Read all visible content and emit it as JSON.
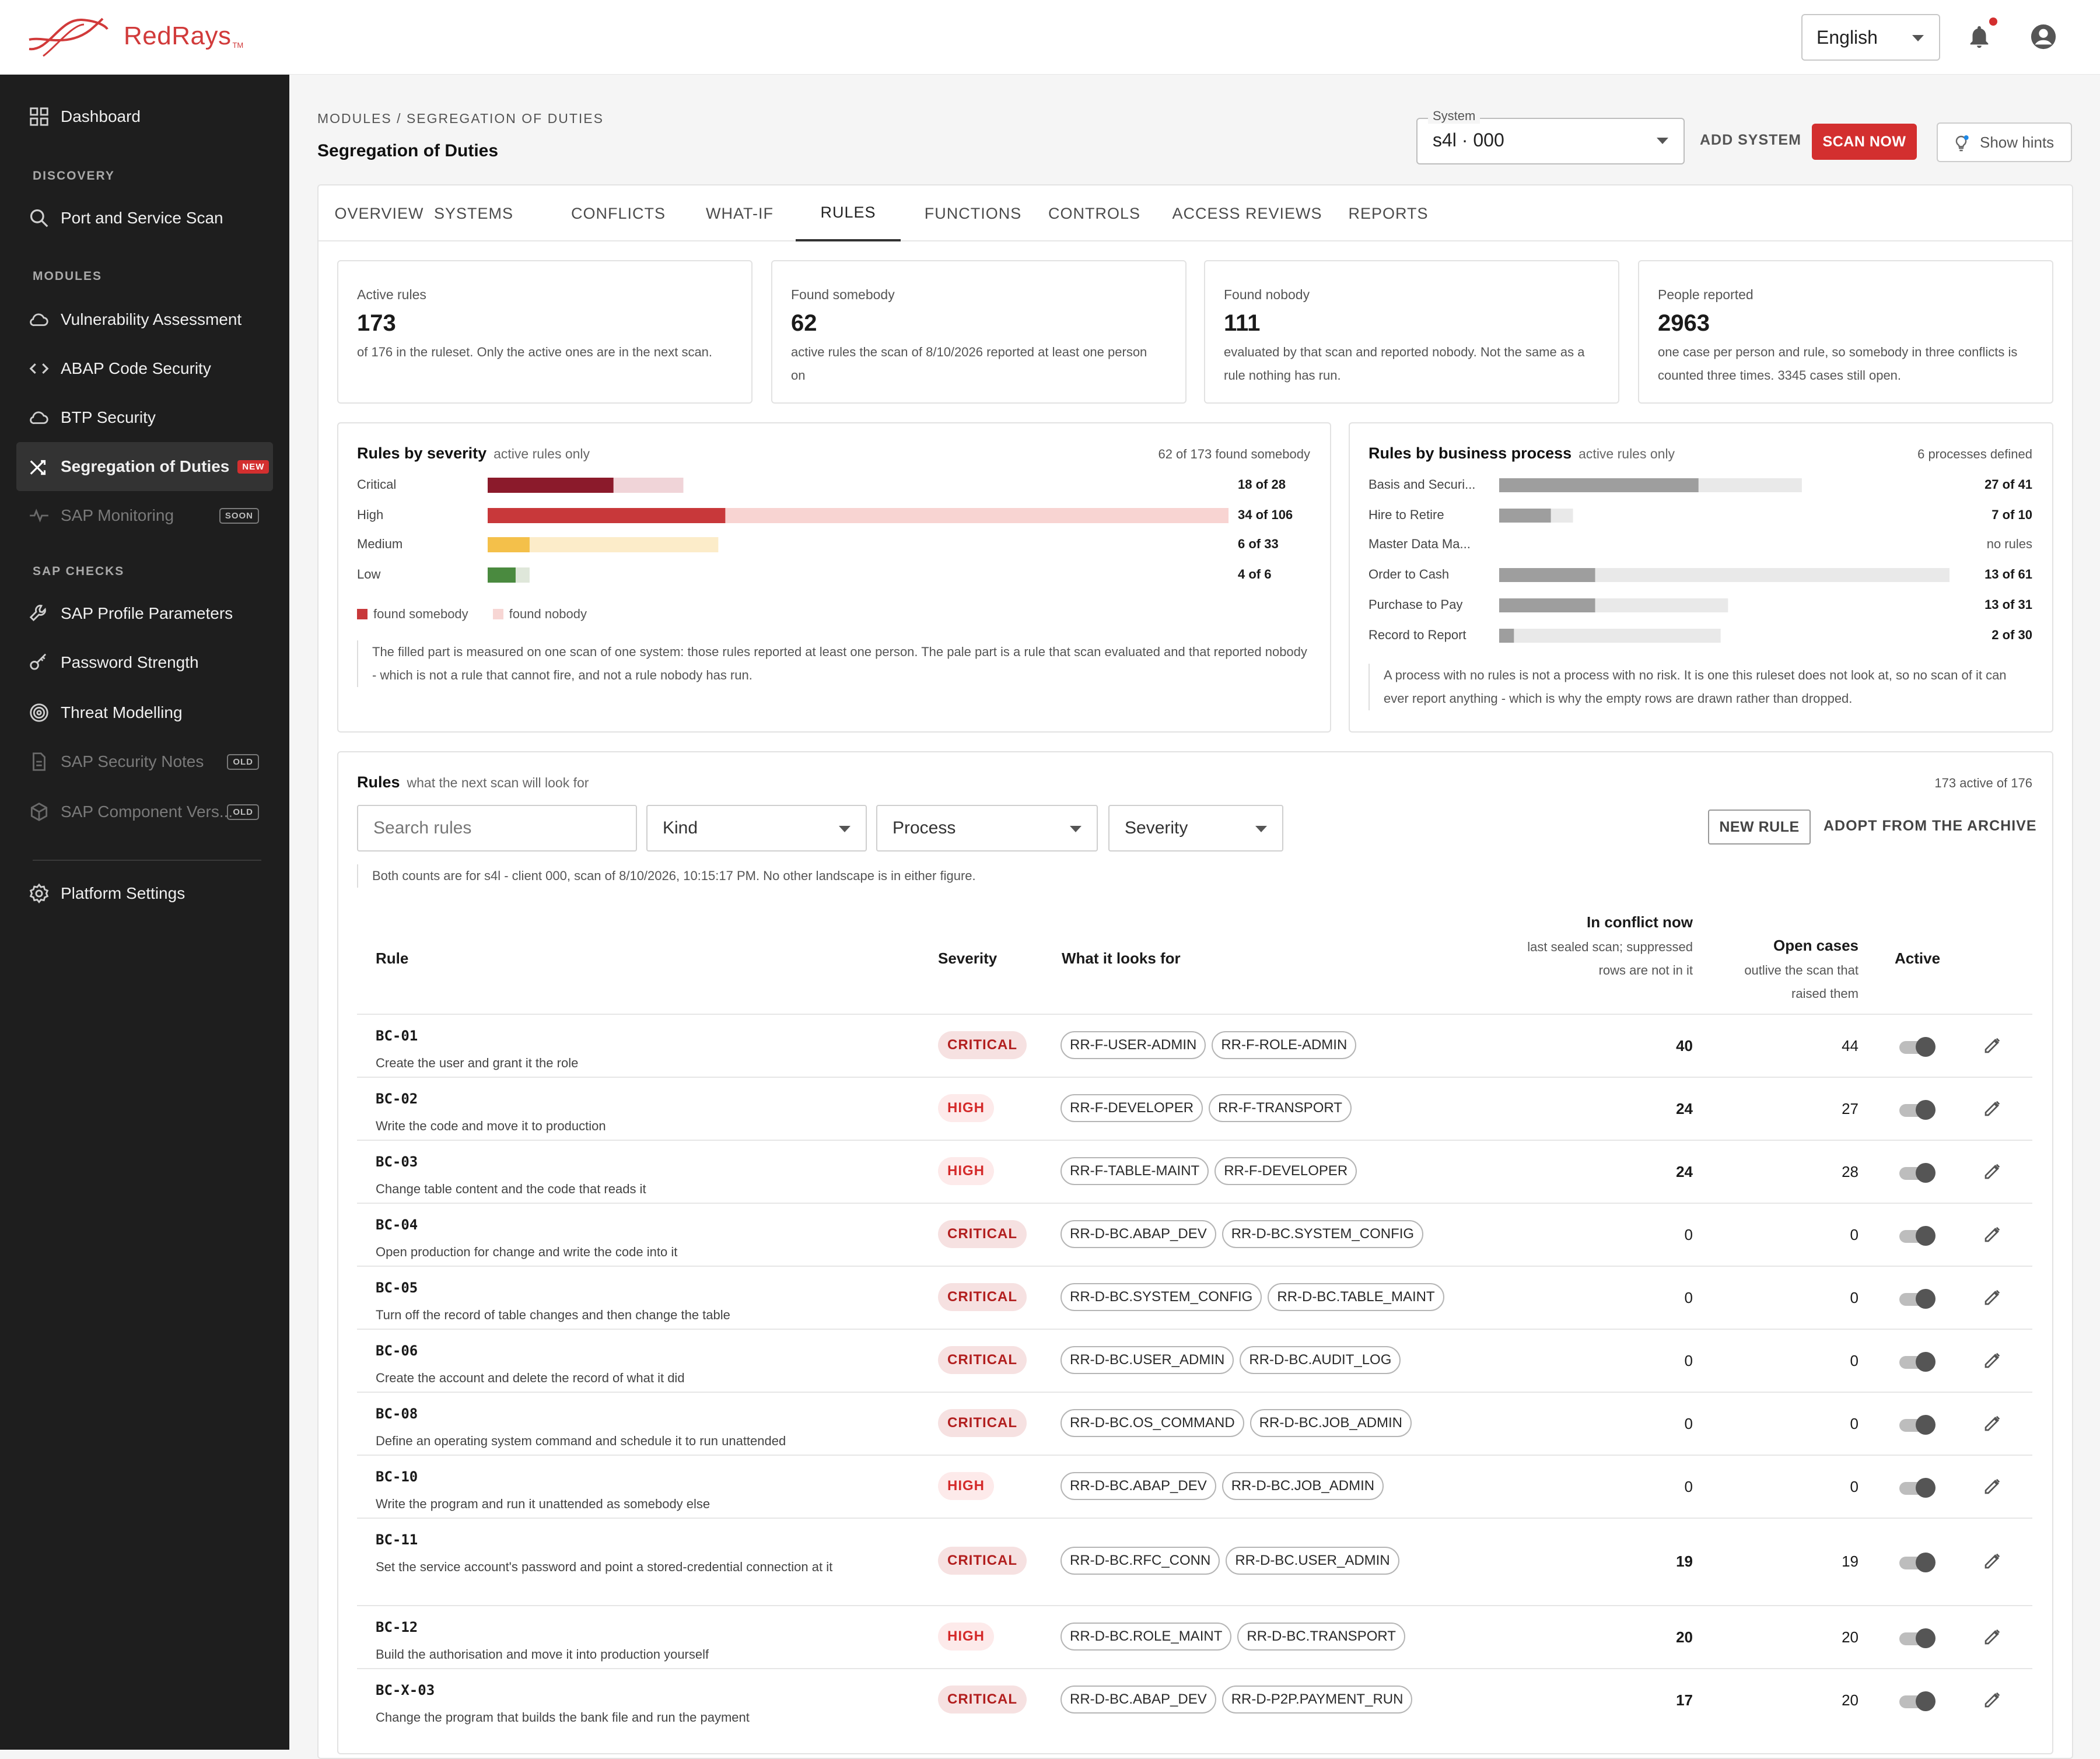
{
  "app": {
    "brand": "RedRays",
    "tm": "TM",
    "language": "English"
  },
  "sidebar": {
    "top": [
      {
        "label": "Dashboard",
        "icon": "grid-icon"
      }
    ],
    "sections": [
      {
        "title": "DISCOVERY",
        "items": [
          {
            "label": "Port and Service Scan",
            "icon": "search-icon"
          }
        ]
      },
      {
        "title": "MODULES",
        "items": [
          {
            "label": "Vulnerability Assessment",
            "icon": "cloud-icon"
          },
          {
            "label": "ABAP Code Security",
            "icon": "code-icon"
          },
          {
            "label": "BTP Security",
            "icon": "cloud-icon"
          },
          {
            "label": "Segregation of Duties",
            "icon": "shuffle-icon",
            "badge": "NEW",
            "active": true
          },
          {
            "label": "SAP Monitoring",
            "icon": "pulse-icon",
            "badge": "SOON",
            "muted": true
          }
        ]
      },
      {
        "title": "SAP CHECKS",
        "items": [
          {
            "label": "SAP Profile Parameters",
            "icon": "wrench-icon"
          },
          {
            "label": "Password Strength",
            "icon": "key-icon"
          },
          {
            "label": "Threat Modelling",
            "icon": "target-icon"
          },
          {
            "label": "SAP Security Notes",
            "icon": "document-icon",
            "badge": "OLD",
            "muted": true
          },
          {
            "label": "SAP Component Vers...",
            "icon": "cube-icon",
            "badge": "OLD",
            "muted": true
          }
        ]
      }
    ],
    "bottom": [
      {
        "label": "Platform Settings",
        "icon": "gear-icon"
      }
    ]
  },
  "page": {
    "breadcrumb": "MODULES / SEGREGATION OF DUTIES",
    "title": "Segregation of Duties",
    "system_label": "System",
    "system_value": "s4l · 000",
    "add_system": "ADD SYSTEM",
    "scan_now": "SCAN NOW",
    "show_hints": "Show hints"
  },
  "tabs": [
    "OVERVIEW",
    "SYSTEMS",
    "CONFLICTS",
    "WHAT-IF",
    "RULES",
    "FUNCTIONS",
    "CONTROLS",
    "ACCESS REVIEWS",
    "REPORTS"
  ],
  "active_tab": "RULES",
  "stats": [
    {
      "label": "Active rules",
      "value": "173",
      "desc": "of 176 in the ruleset. Only the active ones are in the next scan."
    },
    {
      "label": "Found somebody",
      "value": "62",
      "desc": "active rules the scan of 8/10/2026 reported at least one person on"
    },
    {
      "label": "Found nobody",
      "value": "111",
      "desc": "evaluated by that scan and reported nobody. Not the same as a rule nothing has run."
    },
    {
      "label": "People reported",
      "value": "2963",
      "desc": "one case per person and rule, so somebody in three conflicts is counted three times. 3345 cases still open."
    }
  ],
  "severity_panel": {
    "title": "Rules by severity",
    "subtitle": "active rules only",
    "right": "62 of 173 found somebody",
    "legend": [
      "found somebody",
      "found nobody"
    ],
    "note": "The filled part is measured on one scan of one system: those rules reported at least one person. The pale part is a rule that scan evaluated and that reported nobody - which is not a rule that cannot fire, and not a rule nobody has run."
  },
  "process_panel": {
    "title": "Rules by business process",
    "subtitle": "active rules only",
    "right": "6 processes defined",
    "note": "A process with no rules is not a process with no risk. It is one this ruleset does not look at, so no scan of it can ever report anything - which is why the empty rows are drawn rather than dropped."
  },
  "chart_data": [
    {
      "type": "bar",
      "title": "Rules by severity",
      "categories": [
        "Critical",
        "High",
        "Medium",
        "Low"
      ],
      "series": [
        {
          "name": "found somebody",
          "values": [
            18,
            34,
            6,
            4
          ]
        },
        {
          "name": "found nobody",
          "values": [
            10,
            72,
            27,
            2
          ]
        }
      ],
      "totals": [
        28,
        106,
        33,
        6
      ],
      "value_labels": [
        "18 of 28",
        "34 of 106",
        "6 of 33",
        "4 of 6"
      ],
      "colors": {
        "Critical": "#8b1a2b",
        "High": "#c8383a",
        "Medium": "#f4c04a",
        "Low": "#4a8a3f",
        "Critical_pale": "#f0d4d8",
        "High_pale": "#f8d4d2",
        "Medium_pale": "#fcecc9",
        "Low_pale": "#dfe7da"
      },
      "legend_colors": [
        "#c8383a",
        "#f7d6d4"
      ]
    },
    {
      "type": "bar",
      "title": "Rules by business process",
      "categories": [
        "Basis and Securi...",
        "Hire to Retire",
        "Master Data Ma...",
        "Order to Cash",
        "Purchase to Pay",
        "Record to Report"
      ],
      "series": [
        {
          "name": "found somebody",
          "values": [
            27,
            7,
            0,
            13,
            13,
            2
          ]
        },
        {
          "name": "found nobody",
          "values": [
            14,
            3,
            0,
            48,
            18,
            28
          ]
        }
      ],
      "totals": [
        41,
        10,
        0,
        61,
        31,
        30
      ],
      "value_labels": [
        "27 of 41",
        "7 of 10",
        "no rules",
        "13 of 61",
        "13 of 31",
        "2 of 30"
      ],
      "colors": {
        "filled": "#9e9e9e",
        "pale": "#e9e9e9"
      }
    }
  ],
  "rules": {
    "title": "Rules",
    "subtitle": "what the next scan will look for",
    "right": "173 active of 176",
    "search_placeholder": "Search rules",
    "filters": [
      "Kind",
      "Process",
      "Severity"
    ],
    "new_rule": "NEW RULE",
    "adopt": "ADOPT FROM THE ARCHIVE",
    "info": "Both counts are for s4l - client 000, scan of 8/10/2026, 10:15:17 PM. No other landscape is in either figure.",
    "columns": {
      "rule": "Rule",
      "severity": "Severity",
      "looks_for": "What it looks for",
      "conflict": "In conflict now",
      "conflict_sub": "last sealed scan; suppressed rows are not in it",
      "open": "Open cases",
      "open_sub": "outlive the scan that raised them",
      "active": "Active"
    },
    "rows": [
      {
        "id": "BC-01",
        "desc": "Create the user and grant it the role",
        "severity": "CRITICAL",
        "chips": [
          "RR-F-USER-ADMIN",
          "RR-F-ROLE-ADMIN"
        ],
        "conflict": "40",
        "open": "44"
      },
      {
        "id": "BC-02",
        "desc": "Write the code and move it to production",
        "severity": "HIGH",
        "chips": [
          "RR-F-DEVELOPER",
          "RR-F-TRANSPORT"
        ],
        "conflict": "24",
        "open": "27"
      },
      {
        "id": "BC-03",
        "desc": "Change table content and the code that reads it",
        "severity": "HIGH",
        "chips": [
          "RR-F-TABLE-MAINT",
          "RR-F-DEVELOPER"
        ],
        "conflict": "24",
        "open": "28"
      },
      {
        "id": "BC-04",
        "desc": "Open production for change and write the code into it",
        "severity": "CRITICAL",
        "chips": [
          "RR-D-BC.ABAP_DEV",
          "RR-D-BC.SYSTEM_CONFIG"
        ],
        "conflict": "0",
        "open": "0"
      },
      {
        "id": "BC-05",
        "desc": "Turn off the record of table changes and then change the table",
        "severity": "CRITICAL",
        "chips": [
          "RR-D-BC.SYSTEM_CONFIG",
          "RR-D-BC.TABLE_MAINT"
        ],
        "conflict": "0",
        "open": "0"
      },
      {
        "id": "BC-06",
        "desc": "Create the account and delete the record of what it did",
        "severity": "CRITICAL",
        "chips": [
          "RR-D-BC.USER_ADMIN",
          "RR-D-BC.AUDIT_LOG"
        ],
        "conflict": "0",
        "open": "0"
      },
      {
        "id": "BC-08",
        "desc": "Define an operating system command and schedule it to run unattended",
        "severity": "CRITICAL",
        "chips": [
          "RR-D-BC.OS_COMMAND",
          "RR-D-BC.JOB_ADMIN"
        ],
        "conflict": "0",
        "open": "0"
      },
      {
        "id": "BC-10",
        "desc": "Write the program and run it unattended as somebody else",
        "severity": "HIGH",
        "chips": [
          "RR-D-BC.ABAP_DEV",
          "RR-D-BC.JOB_ADMIN"
        ],
        "conflict": "0",
        "open": "0"
      },
      {
        "id": "BC-11",
        "desc": "Set the service account's password and point a stored-credential connection at it",
        "severity": "CRITICAL",
        "chips": [
          "RR-D-BC.RFC_CONN",
          "RR-D-BC.USER_ADMIN"
        ],
        "conflict": "19",
        "open": "19"
      },
      {
        "id": "BC-12",
        "desc": "Build the authorisation and move it into production yourself",
        "severity": "HIGH",
        "chips": [
          "RR-D-BC.ROLE_MAINT",
          "RR-D-BC.TRANSPORT"
        ],
        "conflict": "20",
        "open": "20"
      },
      {
        "id": "BC-X-03",
        "desc": "Change the program that builds the bank file and run the payment",
        "severity": "CRITICAL",
        "chips": [
          "RR-D-BC.ABAP_DEV",
          "RR-D-P2P.PAYMENT_RUN"
        ],
        "conflict": "17",
        "open": "20"
      }
    ]
  }
}
